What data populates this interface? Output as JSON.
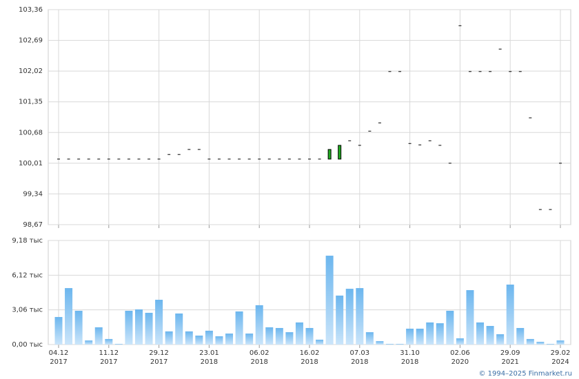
{
  "chart_data": [
    {
      "type": "candlestick",
      "color_up": "#22aa22",
      "open": [
        100.1,
        100.1,
        100.1,
        100.1,
        100.1,
        100.1,
        100.1,
        100.1,
        100.1,
        100.1,
        100.1,
        100.2,
        100.2,
        100.31,
        100.31,
        100.1,
        100.1,
        100.1,
        100.1,
        100.1,
        100.1,
        100.1,
        100.1,
        100.1,
        100.1,
        100.1,
        100.1,
        100.1,
        100.1,
        100.5,
        100.4,
        100.71,
        100.89,
        102.01,
        102.01,
        100.44,
        100.41,
        100.5,
        100.4,
        100.01,
        103.01,
        102.01,
        102.01,
        102.01,
        102.5,
        102.01,
        102.01,
        101.0,
        99.0,
        99.0,
        100.01
      ],
      "close": [
        100.1,
        100.1,
        100.1,
        100.1,
        100.1,
        100.1,
        100.1,
        100.1,
        100.1,
        100.1,
        100.1,
        100.2,
        100.2,
        100.31,
        100.31,
        100.1,
        100.1,
        100.1,
        100.1,
        100.1,
        100.1,
        100.1,
        100.1,
        100.1,
        100.1,
        100.1,
        100.1,
        100.31,
        100.4,
        100.5,
        100.4,
        100.71,
        100.89,
        102.01,
        102.01,
        100.44,
        100.41,
        100.5,
        100.4,
        100.01,
        103.01,
        102.01,
        102.01,
        102.01,
        102.5,
        102.01,
        102.01,
        101.0,
        99.0,
        99.0,
        100.01
      ],
      "ylim": [
        98.67,
        103.36
      ],
      "yticks": [
        {
          "value": 98.67,
          "label": "98,67"
        },
        {
          "value": 99.34,
          "label": "99,34"
        },
        {
          "value": 100.01,
          "label": "100,01"
        },
        {
          "value": 100.68,
          "label": "100,68"
        },
        {
          "value": 101.35,
          "label": "101,35"
        },
        {
          "value": 102.02,
          "label": "102,02"
        },
        {
          "value": 102.69,
          "label": "102,69"
        },
        {
          "value": 103.36,
          "label": "103,36"
        }
      ],
      "grid": true
    },
    {
      "type": "bar",
      "color": "#6cb6ee",
      "categories": [
        "04.12 2017",
        null,
        null,
        null,
        null,
        "11.12 2017",
        null,
        null,
        null,
        null,
        "29.12 2017",
        null,
        null,
        null,
        null,
        "23.01 2018",
        null,
        null,
        null,
        null,
        "06.02 2018",
        null,
        null,
        null,
        null,
        "16.02 2018",
        null,
        null,
        null,
        null,
        "07.03 2018",
        null,
        null,
        null,
        null,
        "31.10 2018",
        null,
        null,
        null,
        null,
        "02.06 2020",
        null,
        null,
        null,
        null,
        "29.09 2021",
        null,
        null,
        null,
        null,
        "29.02 2024"
      ],
      "values": [
        2.43,
        4.98,
        2.98,
        0.36,
        1.52,
        0.49,
        0.06,
        2.98,
        3.1,
        2.8,
        3.95,
        1.16,
        2.74,
        1.16,
        0.79,
        1.22,
        0.73,
        0.97,
        2.92,
        0.97,
        3.47,
        1.52,
        1.46,
        1.09,
        1.95,
        1.46,
        0.43,
        7.84,
        4.32,
        4.92,
        4.98,
        1.09,
        0.3,
        0.06,
        0.06,
        1.4,
        1.4,
        1.95,
        1.88,
        2.98,
        0.55,
        4.8,
        1.95,
        1.64,
        0.91,
        5.29,
        1.46,
        0.49,
        0.24,
        0.06,
        0.36
      ],
      "ylim": [
        0,
        9.18
      ],
      "yticks": [
        {
          "value": 0,
          "label": "0,00 тыс"
        },
        {
          "value": 3.06,
          "label": "3,06 тыс"
        },
        {
          "value": 6.12,
          "label": "6,12 тыс"
        },
        {
          "value": 9.18,
          "label": "9,18 тыс"
        }
      ],
      "grid": true
    }
  ],
  "footer": "© 1994–2025 Finmarket.ru"
}
